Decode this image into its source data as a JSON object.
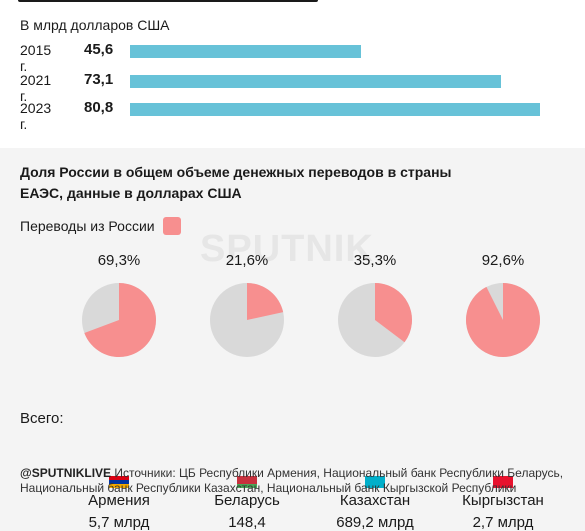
{
  "top": {
    "subtitle": "В млрд долларов США"
  },
  "chart_data": [
    {
      "type": "bar",
      "orientation": "horizontal",
      "subtitle": "В млрд долларов США",
      "categories": [
        "2015 г.",
        "2021 г.",
        "2023 г."
      ],
      "values": [
        45.6,
        73.1,
        80.8
      ],
      "value_labels": [
        "45,6",
        "73,1",
        "80,8"
      ],
      "xlim": [
        0,
        80.8
      ],
      "color": "#67c2d8"
    },
    {
      "type": "pie",
      "title": "Доля России в общем объеме денежных переводов в страны ЕАЭС, данные в долларах США",
      "legend": "Переводы из России",
      "highlight_color": "#f78f8f",
      "rest_color": "#d9d9d9",
      "charts": [
        {
          "country": "Армения",
          "share": 69.3,
          "share_label": "69,3%",
          "total": "5,7 млрд"
        },
        {
          "country": "Беларусь",
          "share": 21.6,
          "share_label": "21,6%",
          "total": "148,4"
        },
        {
          "country": "Казахстан",
          "share": 35.3,
          "share_label": "35,3%",
          "total": "689,2 млрд"
        },
        {
          "country": "Кыргызстан",
          "share": 92.6,
          "share_label": "92,6%",
          "total": "2,7 млрд"
        }
      ]
    }
  ],
  "section": {
    "heading": "Доля России в общем объеме денежных переводов в страны ЕАЭС, данные в долларах США",
    "legend_label": "Переводы из России",
    "watermark": "SPUTNIK",
    "total_label": "Всего:"
  },
  "footer": {
    "handle": "@SPUTNIKLIVE",
    "sources": " Источники: ЦБ Республики Армения, Национальный банк Республики Беларусь, Национальный банк Республики Казахстан, Национальный банк Кыргызской Республики"
  }
}
